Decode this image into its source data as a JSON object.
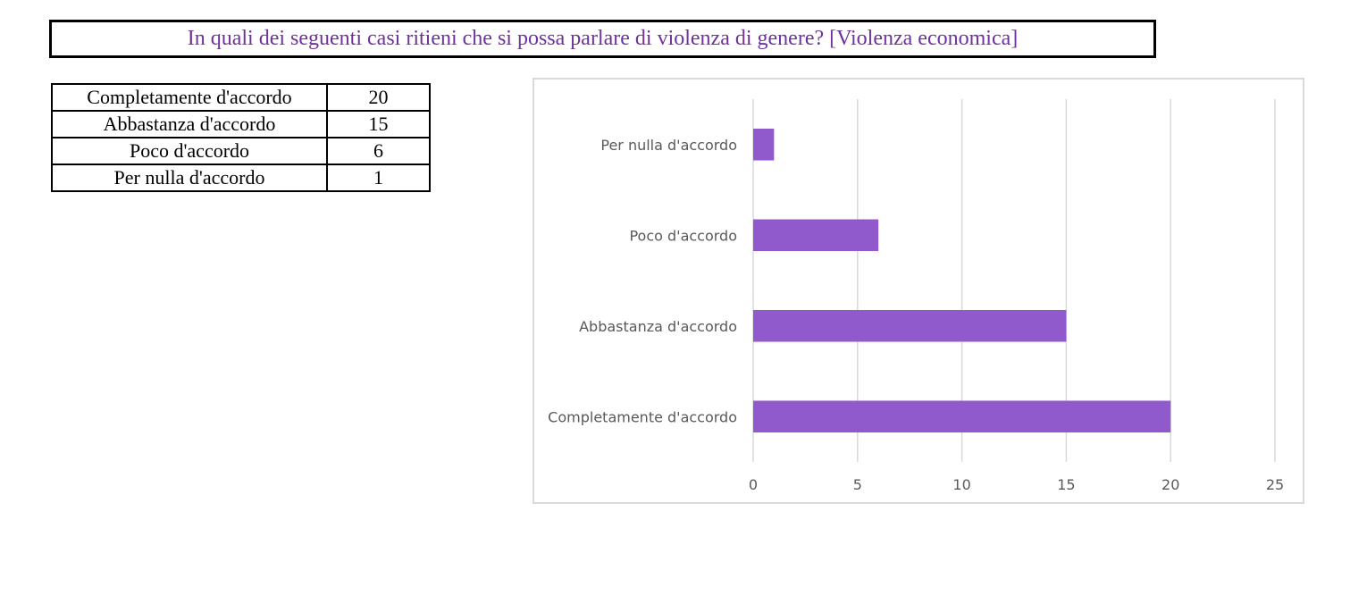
{
  "title": "In quali dei seguenti casi ritieni che si possa parlare di violenza di genere? [Violenza economica]",
  "table": {
    "rows": [
      {
        "label": "Completamente d'accordo",
        "value": "20"
      },
      {
        "label": "Abbastanza d'accordo",
        "value": "15"
      },
      {
        "label": "Poco d'accordo",
        "value": "6"
      },
      {
        "label": "Per nulla d'accordo",
        "value": "1"
      }
    ]
  },
  "colors": {
    "bar": "#9059cc",
    "title": "#7030a0",
    "grid": "#d9d9d9"
  },
  "chart_data": {
    "type": "bar",
    "orientation": "horizontal",
    "categories": [
      "Per nulla d'accordo",
      "Poco d'accordo",
      "Abbastanza d'accordo",
      "Completamente d'accordo"
    ],
    "values": [
      1,
      6,
      15,
      20
    ],
    "xlim": [
      0,
      25
    ],
    "xticks": [
      0,
      5,
      10,
      15,
      20,
      25
    ],
    "grid": true,
    "legend": "none"
  }
}
